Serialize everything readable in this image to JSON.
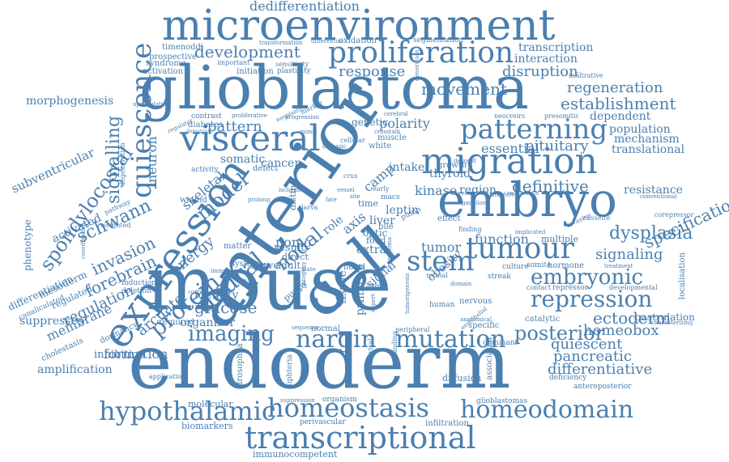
{
  "word_color": "#4a7fb0",
  "words": {
    "mouse": "mouse",
    "endoderm": "endoderm",
    "anterior": "anterior",
    "glioblastoma": "glioblastoma",
    "microenvironment": "microenvironment",
    "cell": "cell",
    "embryo": "embryo",
    "migration": "migration",
    "expression": "expression",
    "visceral": "visceral",
    "proliferation": "proliferation",
    "patterning": "patterning",
    "tumour": "tumour",
    "stem": "stem",
    "transcriptional": "transcriptional",
    "hypothalamic": "hypothalamic",
    "homeostasis": "homeostasis",
    "homeodomain": "homeodomain",
    "mutation": "mutation",
    "nargin": "nargin",
    "imaging": "imaging",
    "repression": "repression",
    "embryonic": "embryonic",
    "quiescence": "quiescence",
    "neural": "neural",
    "protein": "protein",
    "spondylocostal": "spondylocostal",
    "signalling": "signalling",
    "dedifferentiation": "dedifferentiation",
    "development": "development",
    "movement": "movement",
    "response": "response",
    "disruption": "disruption",
    "regeneration": "regeneration",
    "establishment": "establishment",
    "definitive": "definitive",
    "specification": "specification",
    "dysplasia": "dysplasia",
    "signaling": "signaling",
    "ectoderm": "ectoderm",
    "posterior": "posterior",
    "homeobox": "homeobox",
    "quiescent": "quiescent",
    "pancreatic": "pancreatic",
    "differentiative": "differentiative",
    "glucose": "glucose",
    "organiser": "organiser",
    "identity": "identity",
    "arcuate": "arcuate",
    "nodal": "nodal",
    "model": "model",
    "schwann": "schwann",
    "invasion": "invasion",
    "forebrain": "forebrain",
    "regulation": "regulation",
    "membrane": "membrane",
    "suppresses": "suppresses",
    "formation": "formation",
    "inhibition": "inhibition",
    "amplification": "amplification",
    "morphogenesis": "morphogenesis",
    "subventricular": "subventricular",
    "pattern": "pattern",
    "somatic": "somatic",
    "pituitary": "pituitary",
    "kinase": "kinase",
    "region": "region",
    "function": "function",
    "multiple": "multiple",
    "tumor": "tumor",
    "resistance": "resistance",
    "population": "population",
    "mechanism": "mechanism",
    "translational": "translational",
    "dependent": "dependent",
    "polarity": "polarity",
    "essential": "essential",
    "thyroid": "thyroid",
    "infiltration": "infiltration",
    "immunocompetent": "immunocompetent",
    "molecular": "molecular",
    "biomarkers": "biomarkers",
    "perivascular": "perivascular",
    "gastrulation": "gastrulation",
    "catalytic": "catalytic",
    "diffusion": "diffusion",
    "deficiency": "deficiency",
    "anteroposterior": "anteroposterior",
    "transcription": "transcription",
    "interaction": "interaction",
    "activation": "activation",
    "prospective": "prospective",
    "syndrome": "syndrome",
    "timenoddi": "timenoddi",
    "oxidation": "oxidation",
    "differential": "differential",
    "segmentation": "segmentation",
    "transformation": "transformation",
    "initiation": "initiation",
    "important": "important",
    "sensitivity": "sensitivity",
    "plasticity": "plasticity",
    "energy": "energy",
    "skeletal": "skeletal",
    "neuron": "neuron",
    "activated": "activated",
    "phenotype": "phenotype",
    "differentiation": "differentiation",
    "mesoderm": "mesoderm",
    "regulated": "regulated",
    "canaliculated": "canaliculated",
    "cholestasis": "cholestasis",
    "dormancy": "dormancy",
    "required": "required",
    "pomc": "pomc",
    "leptin": "leptin",
    "liver": "liver",
    "intake": "intake",
    "genetic": "genetic",
    "cancer": "cancer",
    "defect": "defect",
    "result": "result",
    "role": "role",
    "axis": "axis",
    "nerve": "nerve",
    "adult": "adult",
    "system": "system",
    "direct": "direct",
    "optic": "optic",
    "food": "food",
    "extra": "extra",
    "signal": "signal",
    "tissue": "tissue",
    "primitive": "primitive",
    "obesity": "obesity",
    "nervous": "nervous",
    "human": "human",
    "specific": "specific",
    "normal": "normal",
    "sequence": "sequence",
    "dominant": "dominant",
    "application": "application",
    "drosophila": "drosophila",
    "organism": "organism",
    "suppression": "suppression",
    "glioblastomas": "glioblastomas",
    "hormone": "hormone",
    "somite": "somite",
    "culture": "culture",
    "streak": "streak",
    "contact": "contact",
    "repressor": "repressor",
    "developmental": "developmental",
    "corepressor": "corepressor",
    "invasive": "invasive",
    "cassette": "cassette",
    "associated": "associated",
    "effect": "effect",
    "novel": "novel",
    "diabetes": "diabetes",
    "contrast": "contrast",
    "growth": "growth",
    "muscle": "muscle",
    "white": "white",
    "matter": "matter",
    "wound": "wound",
    "pathway": "pathway",
    "weighted": "weighted",
    "deletion": "deletion",
    "induction": "induction",
    "degeneration": "degeneration",
    "coordination": "coordination",
    "upregulation": "upregulation",
    "regulator": "regulator",
    "proliferative": "proliferative",
    "neoplastic": "neoplastic",
    "marker": "marker",
    "infiltrative": "infiltrative",
    "presomitic": "presomitic",
    "neocreirs": "neocreirs",
    "conventional": "conventional",
    "treatment": "treatment",
    "characterizing": "characterizing",
    "localisation": "localisation",
    "implicated": "implicated",
    "binding": "binding",
    "peripheral": "peripheral",
    "survival": "survival",
    "tumorigenesis": "tumorigenesis",
    "crosstalk": "crosstalk",
    "ganglion": "ganglion",
    "delayed": "delayed",
    "restricted": "restricted",
    "cellular": "cellular",
    "generation": "generation",
    "progression": "progression",
    "activity": "activity",
    "early": "early",
    "finding": "finding",
    "time": "time",
    "bile": "bile",
    "larva": "larva",
    "pump": "pump",
    "macs": "macs",
    "distinct": "distinct",
    "camp": "camp",
    "crus": "crus",
    "mouse2": "ontogeny",
    "retinal": "retinal",
    "domain": "domain",
    "expert": "expert",
    "ictal": "ictal",
    "plate": "plate",
    "puppy": "puppy",
    "diphteria": "diphteria",
    "carcinoma": "carcinoma",
    "layer": "layer",
    "interfere": "interfere",
    "recurrence": "recurrence",
    "cerebral": "cerebral",
    "mimic": "mimic",
    "correct": "correct",
    "immune": "immune",
    "fate": "fate",
    "vessel": "vessel",
    "site": "site",
    "endothelial": "endothelial",
    "prolong": "prolong",
    "biphasic": "biphasic",
    "ischemic": "ischemic",
    "anatomical": "anatomical",
    "demarcate": "demarcate"
  }
}
